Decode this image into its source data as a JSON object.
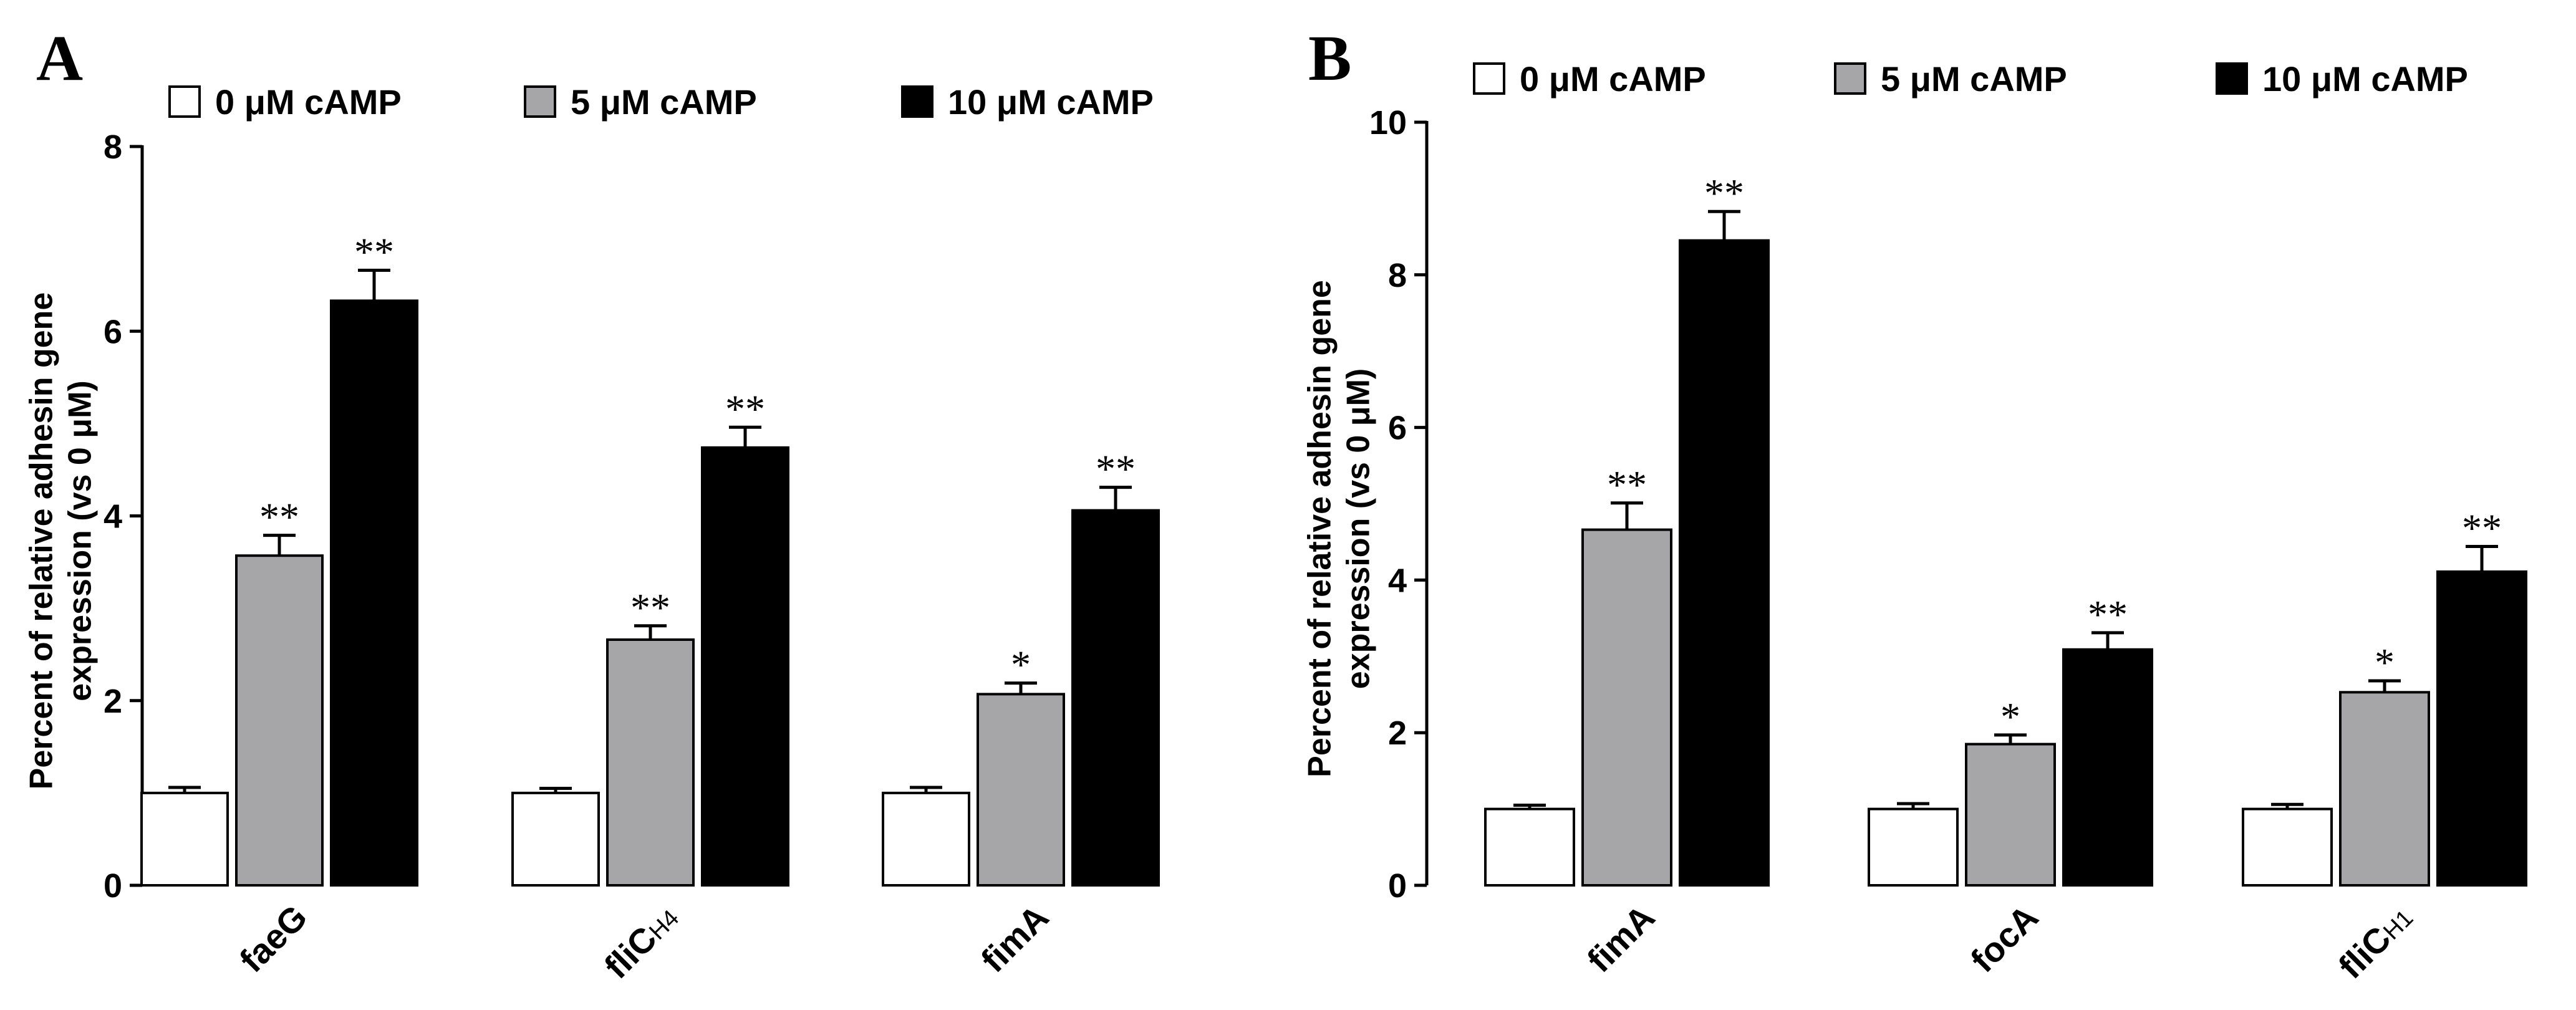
{
  "chart_data": [
    {
      "panel": "A",
      "type": "bar",
      "categories": [
        "faeG",
        "fliCH4",
        "fimA"
      ],
      "category_parts": [
        {
          "main": "faeG",
          "sub": ""
        },
        {
          "main": "fliC",
          "sub": "H4"
        },
        {
          "main": "fimA",
          "sub": ""
        }
      ],
      "series": [
        {
          "name": "0 μM cAMP",
          "color": "#ffffff",
          "values": [
            1.0,
            1.0,
            1.0
          ],
          "errors": [
            0.06,
            0.05,
            0.06
          ],
          "sig": [
            "",
            "",
            ""
          ]
        },
        {
          "name": "5 μM cAMP",
          "color": "#a6a6a8",
          "values": [
            3.57,
            2.66,
            2.07
          ],
          "errors": [
            0.22,
            0.15,
            0.12
          ],
          "sig": [
            "**",
            "**",
            "*"
          ]
        },
        {
          "name": "10 μM cAMP",
          "color": "#000000",
          "values": [
            6.33,
            4.74,
            4.06
          ],
          "errors": [
            0.33,
            0.22,
            0.25
          ],
          "sig": [
            "**",
            "**",
            "**"
          ]
        }
      ],
      "ylabel_line1": "Percent of relative adhesin gene",
      "ylabel_line2": "expression (vs 0 μM)",
      "xlabel": "",
      "ylim": [
        0,
        8
      ],
      "yticks": [
        "0",
        "2",
        "4",
        "6",
        "8"
      ],
      "legend": "top"
    },
    {
      "panel": "B",
      "type": "bar",
      "categories": [
        "fimA",
        "focA",
        "fliCH1"
      ],
      "category_parts": [
        {
          "main": "fimA",
          "sub": ""
        },
        {
          "main": "focA",
          "sub": ""
        },
        {
          "main": "fliC",
          "sub": "H1"
        }
      ],
      "series": [
        {
          "name": "0 μM cAMP",
          "color": "#ffffff",
          "values": [
            1.0,
            1.0,
            1.0
          ],
          "errors": [
            0.05,
            0.07,
            0.06
          ],
          "sig": [
            "",
            "",
            ""
          ]
        },
        {
          "name": "5 μM cAMP",
          "color": "#a6a6a8",
          "values": [
            4.66,
            1.85,
            2.53
          ],
          "errors": [
            0.35,
            0.12,
            0.15
          ],
          "sig": [
            "**",
            "*",
            "*"
          ]
        },
        {
          "name": "10 μM cAMP",
          "color": "#000000",
          "values": [
            8.45,
            3.09,
            4.11
          ],
          "errors": [
            0.38,
            0.22,
            0.33
          ],
          "sig": [
            "**",
            "**",
            "**"
          ]
        }
      ],
      "ylabel_line1": "Percent of relative adhesin gene",
      "ylabel_line2": "expression (vs 0 μM)",
      "xlabel": "",
      "ylim": [
        0,
        10
      ],
      "yticks": [
        "0",
        "2",
        "4",
        "6",
        "8",
        "10"
      ],
      "legend": "top"
    }
  ]
}
